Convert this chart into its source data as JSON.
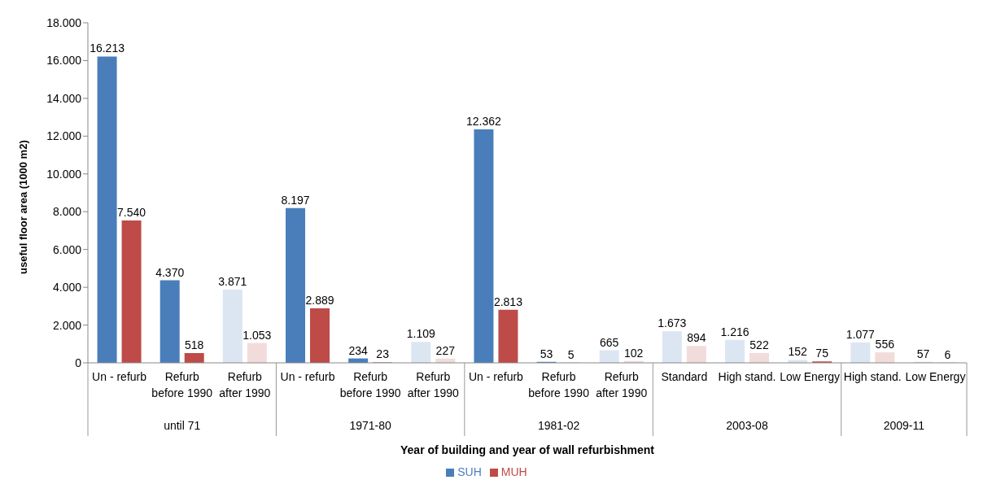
{
  "chart_data": {
    "type": "bar",
    "ylabel": "useful floor area (1000 m2)",
    "xlabel": "Year of building and year of wall refurbishment",
    "categories": [
      "Un - refurb",
      "Refurb before 1990",
      "Refurb after 1990",
      "Un - refurb",
      "Refurb before 1990",
      "Refurb after 1990",
      "Un - refurb",
      "Refurb before 1990",
      "Refurb after 1990",
      "Standard",
      "High stand.",
      "Low Energy",
      "High stand.",
      "Low Energy"
    ],
    "annotations": [
      "until 71",
      "1971-80",
      "1981-02",
      "2003-08",
      "2009-11"
    ],
    "series": [
      {
        "name": "SUH",
        "color": "#4a7ebb",
        "colors": [
          "#4a7ebb",
          "#4a7ebb",
          "#dce6f2",
          "#4a7ebb",
          "#4a7ebb",
          "#dce6f2",
          "#4a7ebb",
          "#4a7ebb",
          "#dce6f2",
          "#dce6f2",
          "#dce6f2",
          "#dce6f2",
          "#dce6f2",
          "#dce6f2"
        ],
        "values": [
          16213,
          4370,
          3871,
          8197,
          234,
          1109,
          12362,
          53,
          665,
          1673,
          1216,
          152,
          1077,
          57
        ],
        "value_labels": [
          "16.213",
          "4.370",
          "3.871",
          "8.197",
          "234",
          "1.109",
          "12.362",
          "53",
          "665",
          "1.673",
          "1.216",
          "152",
          "1.077",
          "57"
        ]
      },
      {
        "name": "MUH",
        "color": "#be4b48",
        "colors": [
          "#be4b48",
          "#be4b48",
          "#f2dcdb",
          "#be4b48",
          "#be4b48",
          "#f2dcdb",
          "#be4b48",
          "#be4b48",
          "#f2dcdb",
          "#f2dcdb",
          "#f2dcdb",
          "#be4b48",
          "#f2dcdb",
          "#be4b48"
        ],
        "values": [
          7540,
          518,
          1053,
          2889,
          23,
          227,
          2813,
          5,
          102,
          894,
          522,
          75,
          556,
          6
        ],
        "value_labels": [
          "7.540",
          "518",
          "1.053",
          "2.889",
          "23",
          "227",
          "2.813",
          "5",
          "102",
          "894",
          "522",
          "75",
          "556",
          "6"
        ]
      }
    ],
    "ylim": [
      0,
      18000
    ],
    "yticks": [
      {
        "value": 0,
        "label": "0"
      },
      {
        "value": 2000,
        "label": "2.000"
      },
      {
        "value": 4000,
        "label": "4.000"
      },
      {
        "value": 6000,
        "label": "6.000"
      },
      {
        "value": 8000,
        "label": "8.000"
      },
      {
        "value": 10000,
        "label": "10.000"
      },
      {
        "value": 12000,
        "label": "12.000"
      },
      {
        "value": 14000,
        "label": "14.000"
      },
      {
        "value": 16000,
        "label": "16.000"
      },
      {
        "value": 18000,
        "label": "18.000"
      }
    ],
    "grid": false,
    "legend": "bottom"
  }
}
